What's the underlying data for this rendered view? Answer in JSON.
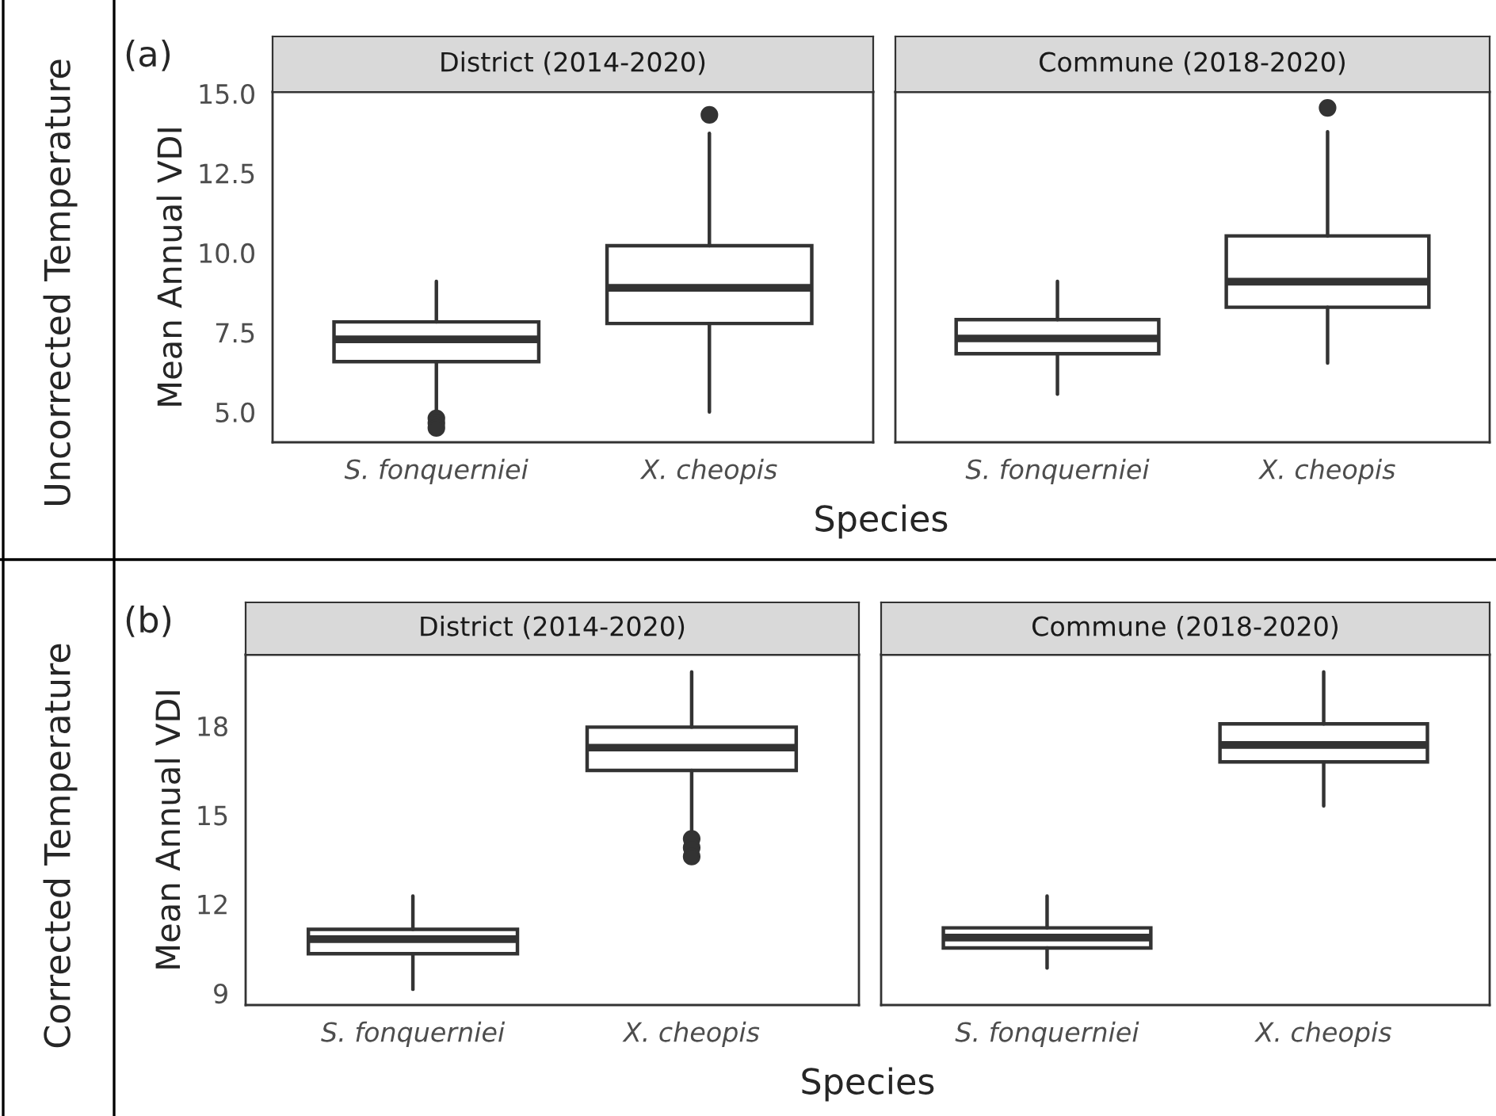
{
  "chart_data": [
    {
      "type": "box",
      "title": "District (2014-2020)",
      "ylabel": "Mean Annual VDI",
      "xlabel": "Species",
      "annotations": [
        "(a)",
        "Uncorrected Temperature"
      ],
      "categories": [
        "S. fonquerniei",
        "X. cheopis"
      ],
      "ylim": [
        4.05,
        15.05
      ],
      "yticks": [
        {
          "value": 5,
          "label": "5.0"
        },
        {
          "value": 7.5,
          "label": "7.5"
        },
        {
          "value": 10,
          "label": "10.0"
        },
        {
          "value": 12.5,
          "label": "12.5"
        },
        {
          "value": 15,
          "label": "15.0"
        }
      ],
      "boxes": [
        {
          "low": 4.95,
          "q1": 6.58,
          "median": 7.28,
          "q3": 7.83,
          "high": 9.1,
          "outliers": [
            4.8,
            4.65,
            4.5
          ]
        },
        {
          "low": 5.0,
          "q1": 7.78,
          "median": 8.9,
          "q3": 10.22,
          "high": 13.75,
          "outliers": [
            14.33
          ]
        }
      ]
    },
    {
      "type": "box",
      "title": "Commune (2018-2020)",
      "tick_labels": "x",
      "categories": [
        "S. fonquerniei",
        "X. cheopis"
      ],
      "ylim": [
        4.05,
        15.05
      ],
      "boxes": [
        {
          "low": 5.56,
          "q1": 6.83,
          "median": 7.31,
          "q3": 7.9,
          "high": 9.1
        },
        {
          "low": 6.54,
          "q1": 8.29,
          "median": 9.09,
          "q3": 10.53,
          "high": 13.8,
          "outliers": [
            14.55
          ]
        }
      ]
    },
    {
      "type": "box",
      "title": "District (2014-2020)",
      "ylabel": "Mean Annual VDI",
      "xlabel": "Species",
      "annotations": [
        "(b)",
        "Corrected Temperature"
      ],
      "categories": [
        "S. fonquerniei",
        "X. cheopis"
      ],
      "ylim": [
        8.6,
        20.4
      ],
      "yticks": [
        9,
        12,
        15,
        18
      ],
      "boxes": [
        {
          "low": 9.13,
          "q1": 10.33,
          "median": 10.82,
          "q3": 11.15,
          "high": 12.27
        },
        {
          "low": 14.34,
          "q1": 16.5,
          "median": 17.27,
          "q3": 17.96,
          "high": 19.82,
          "outliers": [
            14.2,
            13.9,
            13.6
          ]
        }
      ]
    },
    {
      "type": "box",
      "title": "Commune (2018-2020)",
      "tick_labels": "x",
      "categories": [
        "S. fonquerniei",
        "X. cheopis"
      ],
      "ylim": [
        8.6,
        20.4
      ],
      "boxes": [
        {
          "low": 9.85,
          "q1": 10.52,
          "median": 10.87,
          "q3": 11.2,
          "high": 12.27
        },
        {
          "low": 15.31,
          "q1": 16.79,
          "median": 17.36,
          "q3": 18.07,
          "high": 19.82
        }
      ]
    }
  ]
}
